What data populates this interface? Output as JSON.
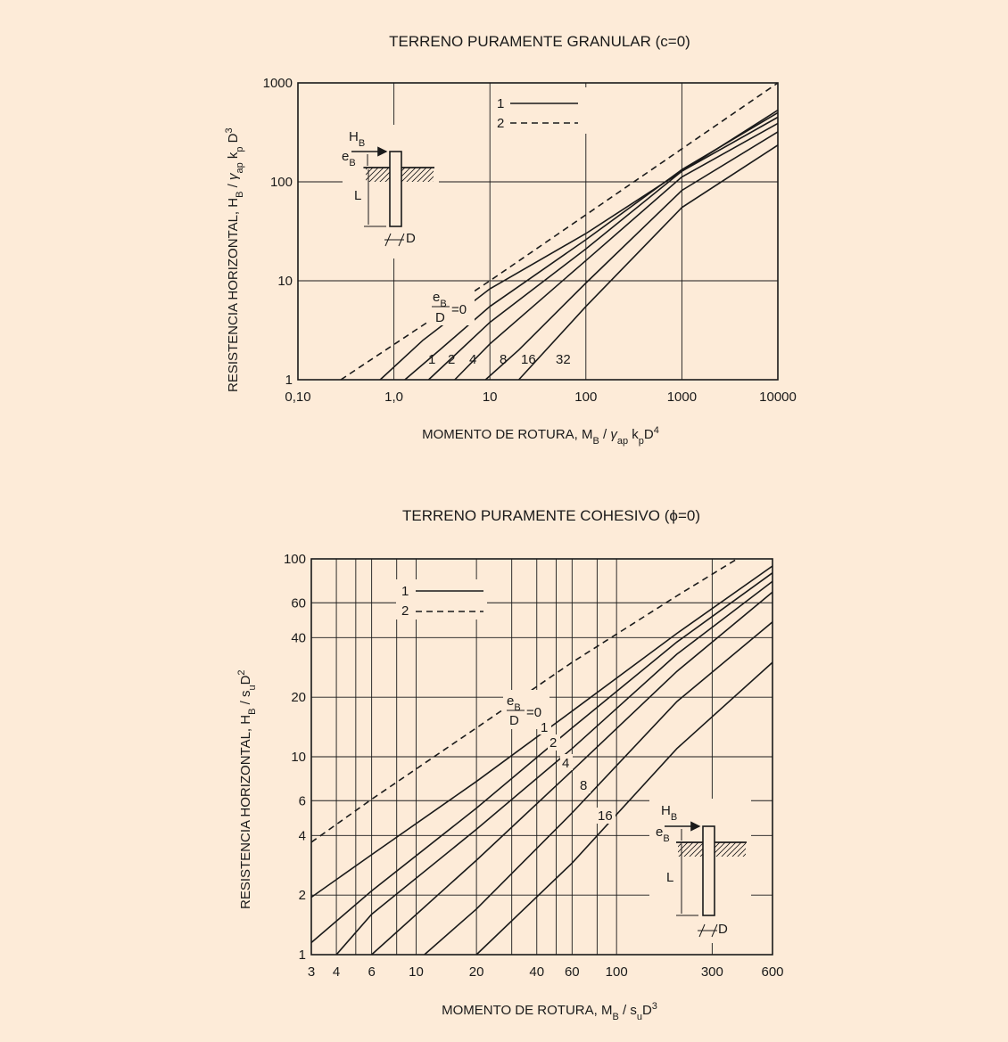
{
  "chart_data": [
    {
      "type": "line",
      "title": "TERRENO PURAMENTE GRANULAR (c=0)",
      "xlabel": "MOMENTO DE ROTURA, M_B / γ_ap k_pD^4",
      "ylabel": "RESISTENCIA HORIZONTAL, H_B / γ_ap k_p D^3",
      "x_scale": "log",
      "y_scale": "log",
      "xlim": [
        0.1,
        10000
      ],
      "ylim": [
        1,
        1000
      ],
      "x_ticks": [
        0.1,
        1,
        10,
        100,
        1000,
        10000
      ],
      "x_tick_labels": [
        "0,10",
        "1,0",
        "10",
        "100",
        "1000",
        "10000"
      ],
      "y_ticks": [
        1,
        10,
        100,
        1000
      ],
      "y_tick_labels": [
        "1",
        "10",
        "100",
        "1000"
      ],
      "grid": true,
      "legend": [
        {
          "label": "1",
          "style": "solid"
        },
        {
          "label": "2",
          "style": "dashed"
        }
      ],
      "legend_position": "top-center",
      "curve_label": {
        "num": "e_B",
        "den": "D",
        "eq": "=0"
      },
      "series": [
        {
          "name": "2",
          "style": "dashed",
          "points": [
            [
              0.28,
              1
            ],
            [
              10,
              10
            ],
            [
              10000,
              1000
            ]
          ]
        },
        {
          "name": "0",
          "style": "solid",
          "points": [
            [
              0.72,
              1
            ],
            [
              2,
              2.5
            ],
            [
              10,
              8.3
            ],
            [
              100,
              30
            ],
            [
              1000,
              128
            ],
            [
              10000,
              530
            ]
          ]
        },
        {
          "name": "1",
          "style": "solid",
          "points": [
            [
              1.3,
              1
            ],
            [
              3,
              2
            ],
            [
              10,
              5.5
            ],
            [
              100,
              26
            ],
            [
              1000,
              133
            ],
            [
              10000,
              500
            ]
          ]
        },
        {
          "name": "2",
          "style": "solid",
          "points": [
            [
              2.3,
              1
            ],
            [
              10,
              3.8
            ],
            [
              100,
              21
            ],
            [
              1000,
              128
            ],
            [
              10000,
              450
            ]
          ]
        },
        {
          "name": "4",
          "style": "solid",
          "points": [
            [
              4.3,
              1
            ],
            [
              10,
              2.3
            ],
            [
              100,
              16
            ],
            [
              1000,
              112
            ],
            [
              10000,
              390
            ]
          ]
        },
        {
          "name": "8",
          "style": "solid",
          "points": [
            [
              9,
              1
            ],
            [
              20,
              2
            ],
            [
              100,
              9.5
            ],
            [
              1000,
              82
            ],
            [
              10000,
              320
            ]
          ]
        },
        {
          "name": "16",
          "style": "solid",
          "points": [
            [
              20,
              1
            ],
            [
              100,
              5.5
            ],
            [
              1000,
              55
            ],
            [
              10000,
              235
            ]
          ]
        }
      ],
      "curve_end_labels": [
        "1",
        "2",
        "4",
        "8",
        "16",
        "32"
      ],
      "inset": {
        "labels": [
          "H_B",
          "e_B",
          "L",
          "D"
        ]
      }
    },
    {
      "type": "line",
      "title": "TERRENO PURAMENTE COHESIVO (ϕ=0)",
      "xlabel": "MOMENTO DE ROTURA, M_B / s_uD^3",
      "ylabel": "RESISTENCIA HORIZONTAL, H_B / s_uD^2",
      "x_scale": "log",
      "y_scale": "log",
      "xlim": [
        3,
        600
      ],
      "ylim": [
        1,
        100
      ],
      "x_ticks": [
        3,
        4,
        6,
        10,
        20,
        40,
        60,
        100,
        300,
        600
      ],
      "x_tick_labels": [
        "3",
        "4",
        "6",
        "10",
        "20",
        "40",
        "60",
        "100",
        "300",
        "600"
      ],
      "x_grid": [
        3,
        4,
        5,
        6,
        8,
        10,
        20,
        30,
        40,
        50,
        60,
        80,
        100,
        300,
        600
      ],
      "y_ticks": [
        1,
        2,
        4,
        6,
        10,
        20,
        40,
        60,
        100
      ],
      "y_tick_labels": [
        "1",
        "2",
        "4",
        "6",
        "10",
        "20",
        "40",
        "60",
        "100"
      ],
      "grid": true,
      "legend": [
        {
          "label": "1",
          "style": "solid"
        },
        {
          "label": "2",
          "style": "dashed"
        }
      ],
      "legend_position": "top-left",
      "curve_label": {
        "num": "e_B",
        "den": "D",
        "eq": "=0"
      },
      "series": [
        {
          "name": "2",
          "style": "dashed",
          "points": [
            [
              3,
              3.7
            ],
            [
              6,
              6.1
            ],
            [
              20,
              14
            ],
            [
              60,
              30
            ],
            [
              200,
              65
            ],
            [
              400,
              100
            ]
          ]
        },
        {
          "name": "0",
          "style": "solid",
          "points": [
            [
              3,
              1.95
            ],
            [
              6,
              3.2
            ],
            [
              20,
              7.5
            ],
            [
              60,
              17
            ],
            [
              200,
              42
            ],
            [
              600,
              92
            ]
          ]
        },
        {
          "name": "1",
          "style": "solid",
          "points": [
            [
              3,
              1.15
            ],
            [
              6,
              2.1
            ],
            [
              20,
              5.5
            ],
            [
              60,
              14
            ],
            [
              200,
              38
            ],
            [
              600,
              85
            ]
          ]
        },
        {
          "name": "2",
          "style": "solid",
          "points": [
            [
              4,
              1
            ],
            [
              6,
              1.6
            ],
            [
              20,
              4.3
            ],
            [
              60,
              11
            ],
            [
              200,
              33
            ],
            [
              600,
              77
            ]
          ]
        },
        {
          "name": "4",
          "style": "solid",
          "points": [
            [
              6,
              1
            ],
            [
              20,
              3
            ],
            [
              60,
              8.5
            ],
            [
              200,
              27
            ],
            [
              600,
              68
            ]
          ]
        },
        {
          "name": "8",
          "style": "solid",
          "points": [
            [
              11,
              1
            ],
            [
              20,
              1.7
            ],
            [
              60,
              5.2
            ],
            [
              200,
              19
            ],
            [
              600,
              48
            ]
          ]
        },
        {
          "name": "16",
          "style": "solid",
          "points": [
            [
              20,
              1
            ],
            [
              60,
              2.9
            ],
            [
              200,
              11
            ],
            [
              600,
              30
            ]
          ]
        }
      ],
      "curve_end_labels": [
        "1",
        "2",
        "4",
        "8",
        "16"
      ],
      "inset": {
        "labels": [
          "H_B",
          "e_B",
          "L",
          "D"
        ]
      }
    }
  ]
}
